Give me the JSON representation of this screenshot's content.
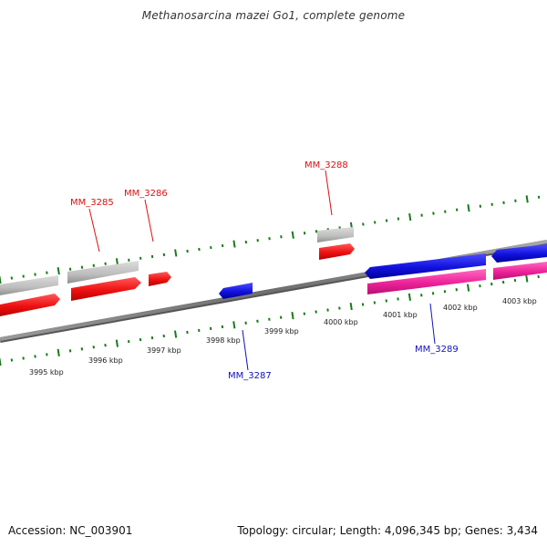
{
  "title": "Methanosarcina mazei Go1, complete genome",
  "footer": {
    "accession": "Accession: NC_003901",
    "summary": "Topology: circular; Length: 4,096,345 bp; Genes: 3,434"
  },
  "ruler_labels": [
    "3995 kbp",
    "3996 kbp",
    "3997 kbp",
    "3998 kbp",
    "3999 kbp",
    "4000 kbp",
    "4001 kbp",
    "4002 kbp",
    "4003 kbp"
  ],
  "gene_labels": [
    {
      "text": "MM_3285",
      "color": "#dd1111"
    },
    {
      "text": "MM_3286",
      "color": "#dd1111"
    },
    {
      "text": "MM_3288",
      "color": "#dd1111"
    },
    {
      "text": "MM_3287",
      "color": "#1111bb"
    },
    {
      "text": "MM_3289",
      "color": "#1111bb"
    }
  ],
  "colors": {
    "backbone": "#777777",
    "forward_cds": "#ee1111",
    "reverse_cds": "#1111dd",
    "forward_gene": "#c0c0c0",
    "reverse_gene": "#ee2299",
    "ticks": "#1a7a1a",
    "ruler_text": "#222222"
  }
}
